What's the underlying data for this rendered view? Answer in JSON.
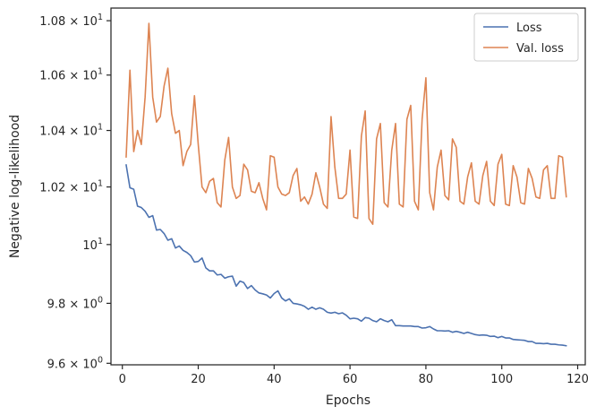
{
  "chart_data": {
    "type": "line",
    "xlabel": "Epochs",
    "ylabel": "Negative log-likelihood",
    "yscale": "log",
    "xlim": [
      -3,
      122
    ],
    "ylim": [
      9.595,
      10.847
    ],
    "grid": false,
    "legend_position": "top-right",
    "x_ticks": [
      {
        "value": 0,
        "label": "0"
      },
      {
        "value": 20,
        "label": "20"
      },
      {
        "value": 40,
        "label": "40"
      },
      {
        "value": 60,
        "label": "60"
      },
      {
        "value": 80,
        "label": "80"
      },
      {
        "value": 100,
        "label": "100"
      },
      {
        "value": 120,
        "label": "120"
      }
    ],
    "y_ticks": [
      {
        "value": 10.8,
        "mantissa": "1.08",
        "base": "10",
        "exp": "1"
      },
      {
        "value": 10.6,
        "mantissa": "1.06",
        "base": "10",
        "exp": "1"
      },
      {
        "value": 10.4,
        "mantissa": "1.04",
        "base": "10",
        "exp": "1"
      },
      {
        "value": 10.2,
        "mantissa": "1.02",
        "base": "10",
        "exp": "1"
      },
      {
        "value": 10.0,
        "mantissa": "",
        "base": "10",
        "exp": "1"
      },
      {
        "value": 9.8,
        "mantissa": "9.8",
        "base": "10",
        "exp": "0"
      },
      {
        "value": 9.6,
        "mantissa": "9.6",
        "base": "10",
        "exp": "0"
      }
    ],
    "x": [
      1,
      2,
      3,
      4,
      5,
      6,
      7,
      8,
      9,
      10,
      11,
      12,
      13,
      14,
      15,
      16,
      17,
      18,
      19,
      20,
      21,
      22,
      23,
      24,
      25,
      26,
      27,
      28,
      29,
      30,
      31,
      32,
      33,
      34,
      35,
      36,
      37,
      38,
      39,
      40,
      41,
      42,
      43,
      44,
      45,
      46,
      47,
      48,
      49,
      50,
      51,
      52,
      53,
      54,
      55,
      56,
      57,
      58,
      59,
      60,
      61,
      62,
      63,
      64,
      65,
      66,
      67,
      68,
      69,
      70,
      71,
      72,
      73,
      74,
      75,
      76,
      77,
      78,
      79,
      80,
      81,
      82,
      83,
      84,
      85,
      86,
      87,
      88,
      89,
      90,
      91,
      92,
      93,
      94,
      95,
      96,
      97,
      98,
      99,
      100,
      101,
      102,
      103,
      104,
      105,
      106,
      107,
      108,
      109,
      110,
      111,
      112,
      113,
      114,
      115,
      116,
      117
    ],
    "series": [
      {
        "name": "Loss",
        "color": "#4c72b0",
        "values": [
          10.278,
          10.197,
          10.192,
          10.133,
          10.128,
          10.115,
          10.094,
          10.1,
          10.05,
          10.052,
          10.038,
          10.015,
          10.02,
          9.988,
          9.995,
          9.98,
          9.973,
          9.962,
          9.94,
          9.942,
          9.954,
          9.92,
          9.91,
          9.91,
          9.896,
          9.898,
          9.885,
          9.89,
          9.892,
          9.858,
          9.875,
          9.87,
          9.85,
          9.86,
          9.845,
          9.835,
          9.832,
          9.828,
          9.818,
          9.833,
          9.842,
          9.818,
          9.808,
          9.815,
          9.8,
          9.798,
          9.795,
          9.79,
          9.78,
          9.787,
          9.78,
          9.785,
          9.78,
          9.77,
          9.767,
          9.77,
          9.765,
          9.768,
          9.76,
          9.748,
          9.75,
          9.748,
          9.74,
          9.752,
          9.75,
          9.742,
          9.738,
          9.748,
          9.742,
          9.738,
          9.745,
          9.725,
          9.725,
          9.724,
          9.724,
          9.724,
          9.722,
          9.722,
          9.717,
          9.718,
          9.722,
          9.714,
          9.708,
          9.708,
          9.707,
          9.708,
          9.703,
          9.706,
          9.703,
          9.699,
          9.703,
          9.699,
          9.695,
          9.693,
          9.694,
          9.693,
          9.689,
          9.69,
          9.685,
          9.689,
          9.684,
          9.684,
          9.679,
          9.678,
          9.677,
          9.676,
          9.672,
          9.672,
          9.666,
          9.666,
          9.665,
          9.666,
          9.663,
          9.663,
          9.661,
          9.66,
          9.658
        ]
      },
      {
        "name": "Val. loss",
        "color": "#dd8452",
        "values": [
          10.305,
          10.618,
          10.325,
          10.4,
          10.35,
          10.52,
          10.79,
          10.52,
          10.43,
          10.45,
          10.56,
          10.625,
          10.46,
          10.39,
          10.4,
          10.275,
          10.325,
          10.35,
          10.525,
          10.35,
          10.2,
          10.18,
          10.22,
          10.23,
          10.145,
          10.13,
          10.295,
          10.375,
          10.2,
          10.16,
          10.17,
          10.28,
          10.26,
          10.185,
          10.18,
          10.215,
          10.16,
          10.12,
          10.31,
          10.305,
          10.2,
          10.175,
          10.17,
          10.18,
          10.24,
          10.265,
          10.15,
          10.165,
          10.14,
          10.175,
          10.25,
          10.2,
          10.14,
          10.125,
          10.45,
          10.27,
          10.16,
          10.16,
          10.175,
          10.33,
          10.095,
          10.09,
          10.38,
          10.47,
          10.09,
          10.07,
          10.37,
          10.425,
          10.145,
          10.13,
          10.33,
          10.425,
          10.14,
          10.13,
          10.44,
          10.49,
          10.15,
          10.12,
          10.44,
          10.59,
          10.18,
          10.12,
          10.27,
          10.33,
          10.17,
          10.155,
          10.37,
          10.34,
          10.15,
          10.14,
          10.235,
          10.285,
          10.15,
          10.14,
          10.24,
          10.29,
          10.15,
          10.135,
          10.28,
          10.315,
          10.14,
          10.135,
          10.275,
          10.235,
          10.145,
          10.14,
          10.265,
          10.23,
          10.165,
          10.16,
          10.26,
          10.275,
          10.16,
          10.16,
          10.31,
          10.305,
          10.165
        ]
      }
    ]
  }
}
